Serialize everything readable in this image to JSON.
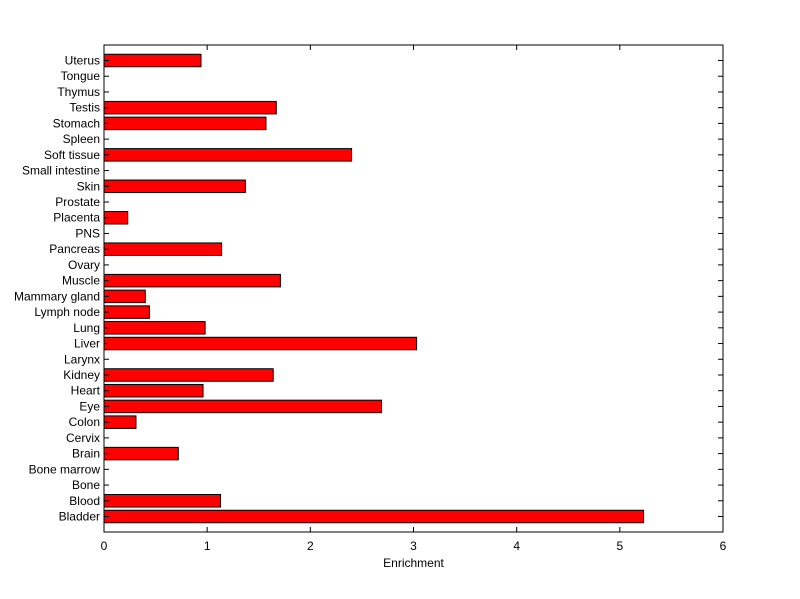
{
  "chart_data": {
    "type": "bar",
    "orientation": "horizontal",
    "title": "",
    "xlabel": "Enrichment",
    "ylabel": "",
    "xlim": [
      0,
      6
    ],
    "xticks": [
      0,
      1,
      2,
      3,
      4,
      5,
      6
    ],
    "grid": false,
    "legend": "none",
    "bar_color": "#ff0000",
    "bar_edge_color": "#000000",
    "categories": [
      "Bladder",
      "Blood",
      "Bone",
      "Bone marrow",
      "Brain",
      "Cervix",
      "Colon",
      "Eye",
      "Heart",
      "Kidney",
      "Larynx",
      "Liver",
      "Lung",
      "Lymph node",
      "Mammary gland",
      "Muscle",
      "Ovary",
      "Pancreas",
      "PNS",
      "Placenta",
      "Prostate",
      "Skin",
      "Small intestine",
      "Soft tissue",
      "Spleen",
      "Stomach",
      "Testis",
      "Thymus",
      "Tongue",
      "Uterus"
    ],
    "values": [
      5.23,
      1.13,
      0,
      0,
      0.72,
      0,
      0.31,
      2.69,
      0.96,
      1.64,
      0,
      3.03,
      0.98,
      0.44,
      0.4,
      1.71,
      0,
      1.14,
      0,
      0.23,
      0,
      1.37,
      0,
      2.4,
      0,
      1.57,
      1.67,
      0,
      0,
      0.94
    ]
  }
}
